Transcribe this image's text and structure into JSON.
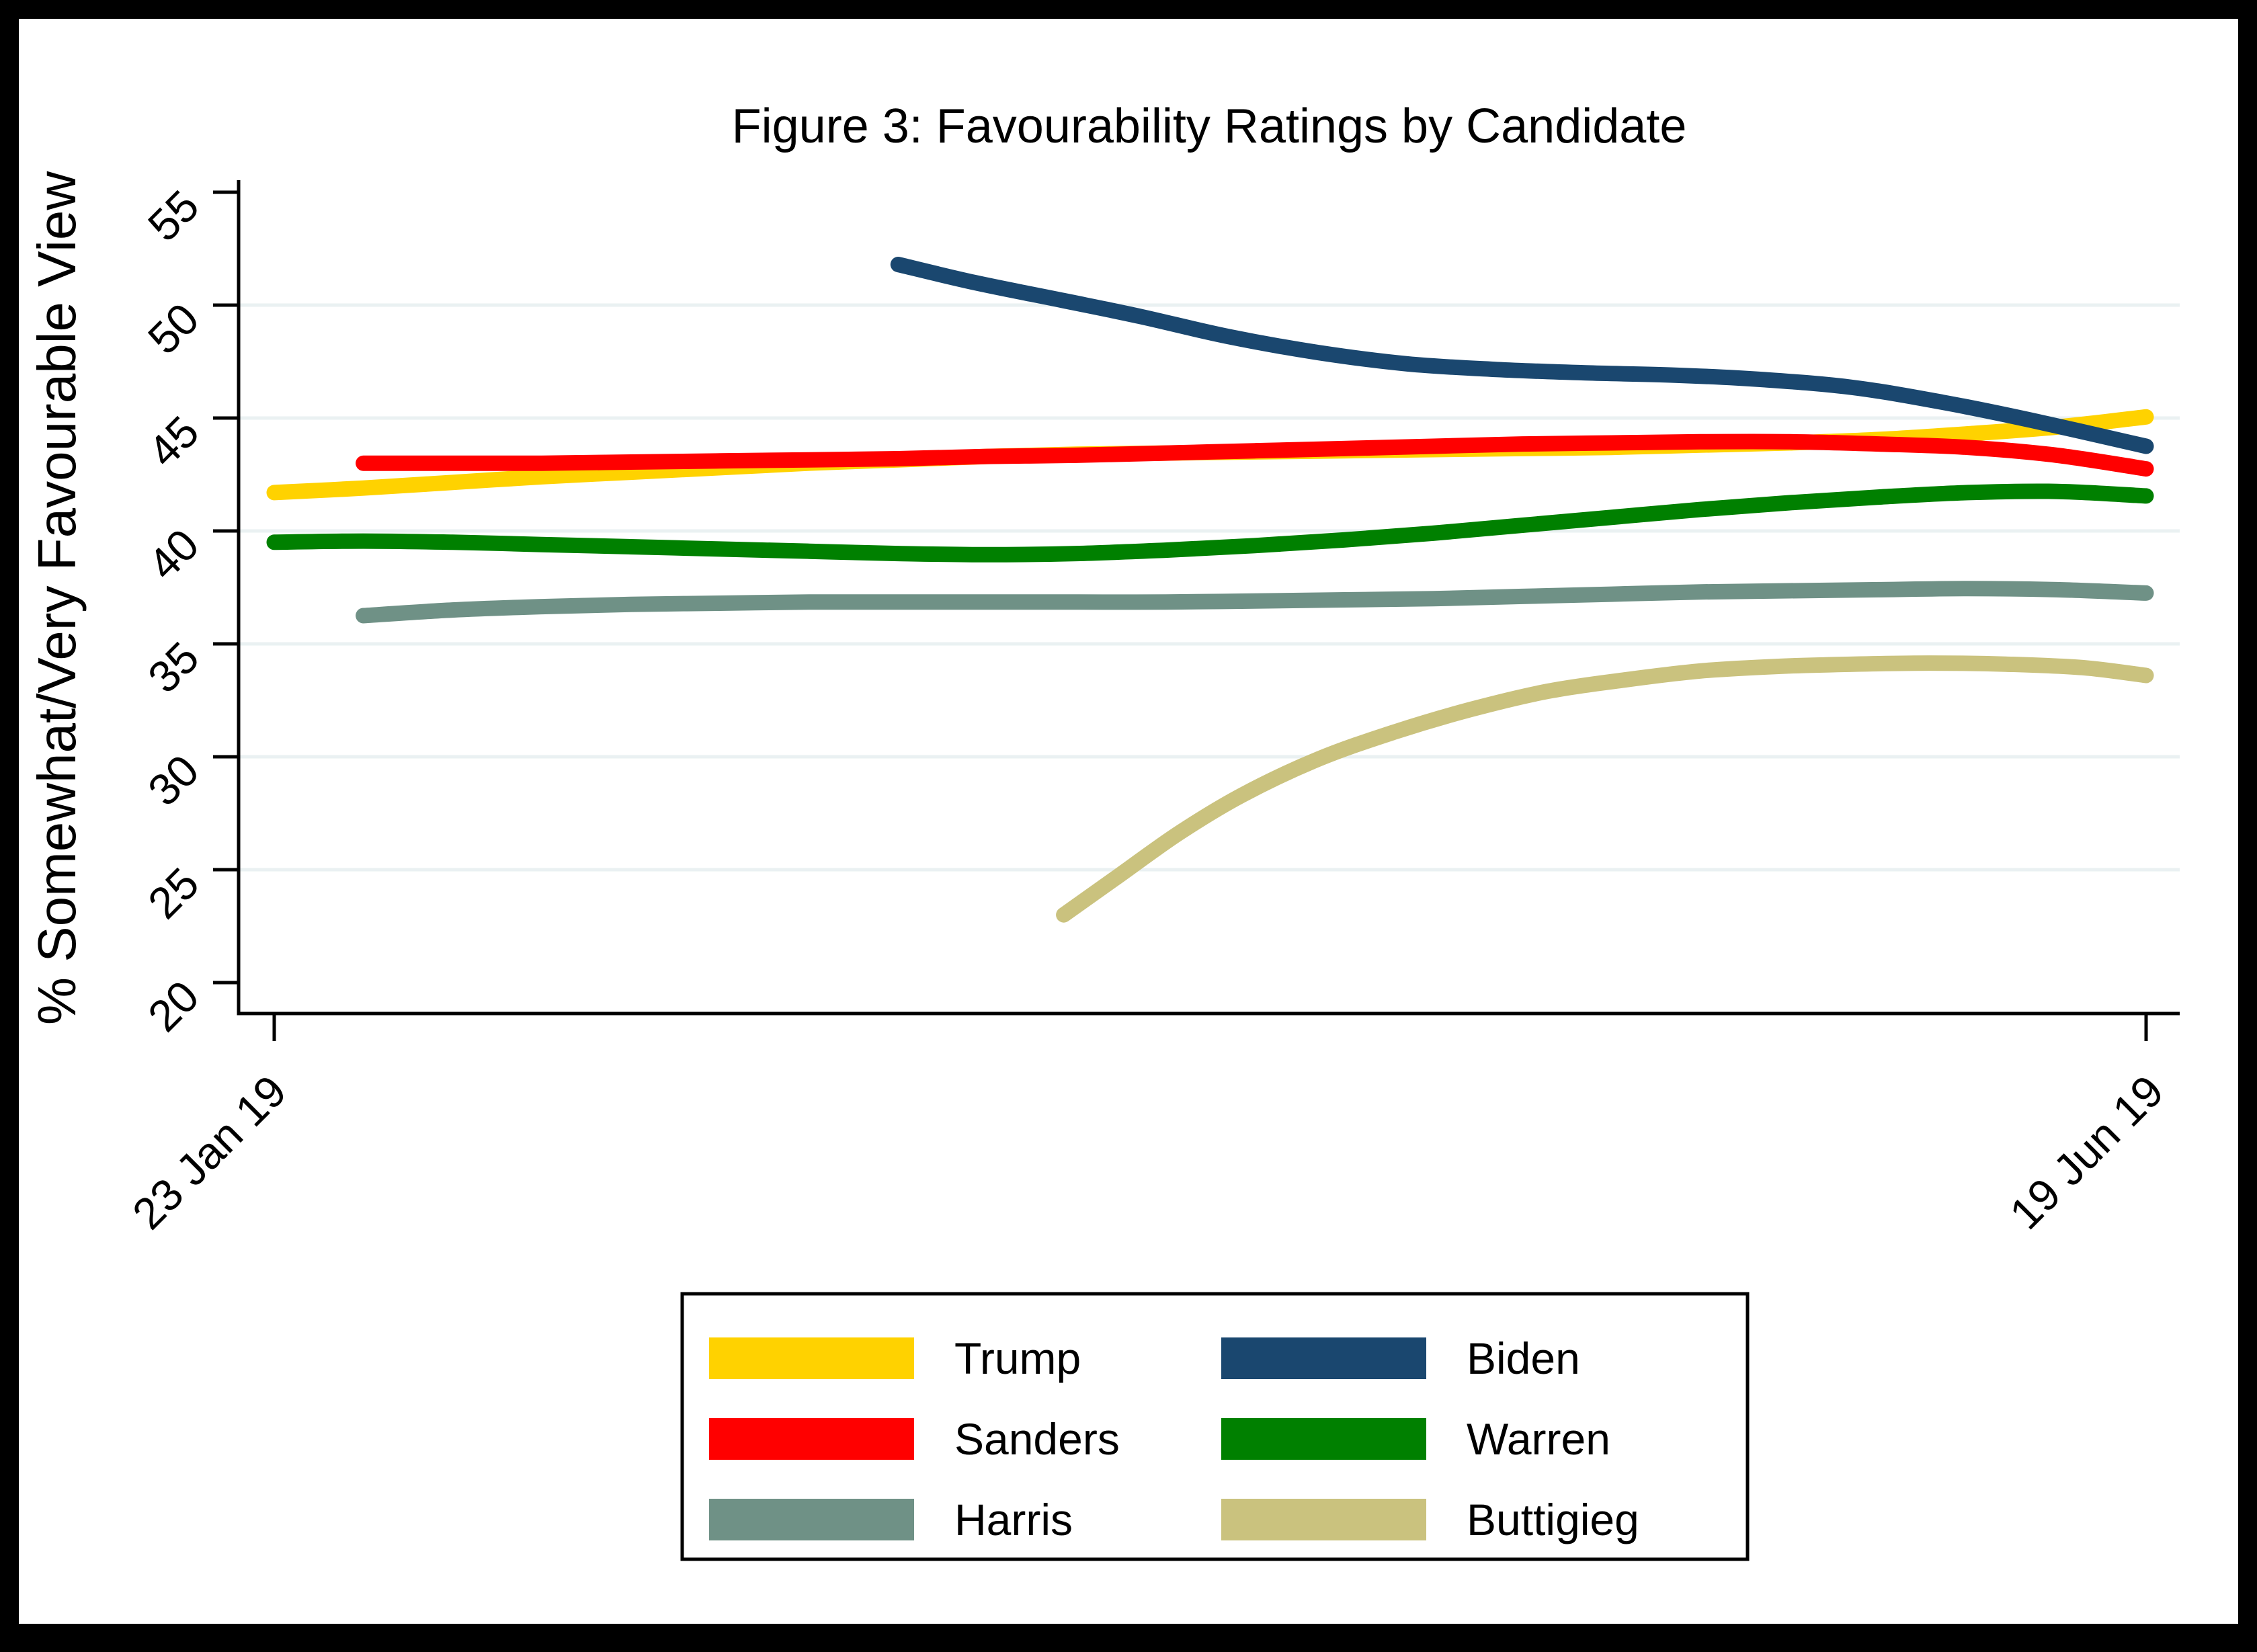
{
  "figure": {
    "title": "Figure 3: Favourability Ratings by Candidate"
  },
  "chart_data": {
    "type": "line",
    "title": "Figure 3: Favourability Ratings by Candidate",
    "xlabel": "",
    "ylabel": "% Somewhat/Very Favourable View",
    "x_unit_note": "x values are days since 23 Jan 2019",
    "x_range_days": [
      0,
      147
    ],
    "ylim": [
      18.6,
      55.8
    ],
    "y_ticks": [
      20,
      25,
      30,
      35,
      40,
      45,
      50,
      55
    ],
    "grid_values": [
      25,
      30,
      35,
      40,
      45,
      50
    ],
    "grid_on": true,
    "grid_color": "#EAF1F2",
    "axis_color": "#000000",
    "legend_position": "bottom",
    "x_tick_labels": [
      {
        "label": "23 Jan 19",
        "day": 0
      },
      {
        "label": "19 Jun 19",
        "day": 147
      }
    ],
    "series": [
      {
        "name": "Trump",
        "color": "#FFD200",
        "points": [
          [
            0,
            41.7
          ],
          [
            7,
            41.9
          ],
          [
            14,
            42.15
          ],
          [
            21,
            42.4
          ],
          [
            28,
            42.6
          ],
          [
            35,
            42.8
          ],
          [
            42,
            43.0
          ],
          [
            49,
            43.15
          ],
          [
            56,
            43.3
          ],
          [
            63,
            43.4
          ],
          [
            70,
            43.45
          ],
          [
            77,
            43.5
          ],
          [
            84,
            43.55
          ],
          [
            91,
            43.6
          ],
          [
            98,
            43.65
          ],
          [
            105,
            43.7
          ],
          [
            112,
            43.8
          ],
          [
            119,
            43.9
          ],
          [
            126,
            44.05
          ],
          [
            133,
            44.3
          ],
          [
            140,
            44.6
          ],
          [
            147,
            45.05
          ]
        ]
      },
      {
        "name": "Biden",
        "color": "#1A476F",
        "points": [
          [
            49,
            51.8
          ],
          [
            55,
            51.0
          ],
          [
            62,
            50.2
          ],
          [
            68,
            49.5
          ],
          [
            75,
            48.6
          ],
          [
            82,
            47.9
          ],
          [
            89,
            47.4
          ],
          [
            96,
            47.15
          ],
          [
            103,
            47.0
          ],
          [
            110,
            46.9
          ],
          [
            117,
            46.7
          ],
          [
            124,
            46.35
          ],
          [
            131,
            45.7
          ],
          [
            138,
            44.9
          ],
          [
            147,
            43.75
          ]
        ]
      },
      {
        "name": "Sanders",
        "color": "#FF0000",
        "points": [
          [
            7,
            43.0
          ],
          [
            14,
            43.0
          ],
          [
            21,
            43.0
          ],
          [
            28,
            43.05
          ],
          [
            35,
            43.1
          ],
          [
            42,
            43.15
          ],
          [
            49,
            43.2
          ],
          [
            56,
            43.3
          ],
          [
            63,
            43.35
          ],
          [
            70,
            43.45
          ],
          [
            77,
            43.55
          ],
          [
            84,
            43.65
          ],
          [
            91,
            43.75
          ],
          [
            98,
            43.85
          ],
          [
            105,
            43.9
          ],
          [
            112,
            43.95
          ],
          [
            119,
            43.95
          ],
          [
            126,
            43.85
          ],
          [
            133,
            43.7
          ],
          [
            140,
            43.35
          ],
          [
            147,
            42.75
          ]
        ]
      },
      {
        "name": "Warren",
        "color": "#008000",
        "points": [
          [
            0,
            39.5
          ],
          [
            7,
            39.55
          ],
          [
            14,
            39.5
          ],
          [
            21,
            39.4
          ],
          [
            28,
            39.3
          ],
          [
            35,
            39.2
          ],
          [
            42,
            39.1
          ],
          [
            49,
            39.0
          ],
          [
            56,
            38.95
          ],
          [
            63,
            39.0
          ],
          [
            70,
            39.15
          ],
          [
            77,
            39.35
          ],
          [
            84,
            39.6
          ],
          [
            91,
            39.9
          ],
          [
            98,
            40.25
          ],
          [
            105,
            40.6
          ],
          [
            112,
            40.95
          ],
          [
            119,
            41.25
          ],
          [
            126,
            41.5
          ],
          [
            133,
            41.7
          ],
          [
            140,
            41.75
          ],
          [
            147,
            41.55
          ]
        ]
      },
      {
        "name": "Harris",
        "color": "#6F9186",
        "points": [
          [
            7,
            36.25
          ],
          [
            14,
            36.5
          ],
          [
            21,
            36.65
          ],
          [
            28,
            36.75
          ],
          [
            35,
            36.8
          ],
          [
            42,
            36.85
          ],
          [
            49,
            36.85
          ],
          [
            56,
            36.85
          ],
          [
            63,
            36.85
          ],
          [
            70,
            36.85
          ],
          [
            77,
            36.9
          ],
          [
            84,
            36.95
          ],
          [
            91,
            37.0
          ],
          [
            98,
            37.1
          ],
          [
            105,
            37.2
          ],
          [
            112,
            37.3
          ],
          [
            119,
            37.35
          ],
          [
            126,
            37.4
          ],
          [
            133,
            37.45
          ],
          [
            140,
            37.4
          ],
          [
            147,
            37.25
          ]
        ]
      },
      {
        "name": "Buttigieg",
        "color": "#CAC27E",
        "points": [
          [
            62,
            23.0
          ],
          [
            66,
            24.6
          ],
          [
            71,
            26.6
          ],
          [
            76,
            28.3
          ],
          [
            82,
            29.9
          ],
          [
            88,
            31.1
          ],
          [
            94,
            32.1
          ],
          [
            100,
            32.9
          ],
          [
            106,
            33.4
          ],
          [
            112,
            33.8
          ],
          [
            118,
            34.0
          ],
          [
            124,
            34.1
          ],
          [
            130,
            34.15
          ],
          [
            136,
            34.1
          ],
          [
            142,
            33.95
          ],
          [
            147,
            33.6
          ]
        ]
      }
    ]
  }
}
